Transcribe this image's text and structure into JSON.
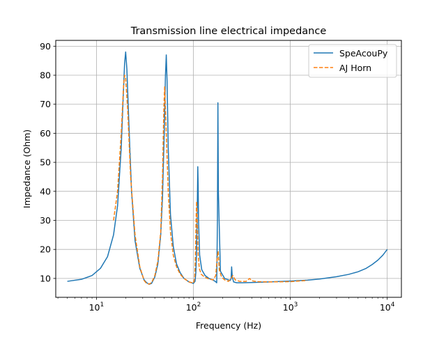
{
  "chart_data": {
    "type": "line",
    "title": "Transmission line electrical impedance",
    "xlabel": "Frequency (Hz)",
    "ylabel": "Impedance (Ohm)",
    "xscale": "log",
    "xlim": [
      3.8,
      14000
    ],
    "ylim": [
      3.5,
      92
    ],
    "x_ticks": [
      {
        "value": 10,
        "base": "10",
        "exp": "1"
      },
      {
        "value": 100,
        "base": "10",
        "exp": "2"
      },
      {
        "value": 1000,
        "base": "10",
        "exp": "3"
      },
      {
        "value": 10000,
        "base": "10",
        "exp": "4"
      }
    ],
    "y_ticks": [
      10,
      20,
      30,
      40,
      50,
      60,
      70,
      80,
      90
    ],
    "grid": true,
    "legend_position": "top-right",
    "series": [
      {
        "name": "SpeAcouPy",
        "color": "#1f77b4",
        "style": "solid",
        "x": [
          5,
          7,
          9,
          11,
          13,
          15,
          16.5,
          18,
          19,
          19.5,
          20,
          20.6,
          21.5,
          23,
          25,
          28,
          31,
          33,
          35,
          37,
          40,
          43,
          46,
          48,
          50,
          51.5,
          52.5,
          53.5,
          55,
          58,
          62,
          67,
          73,
          80,
          90,
          100,
          104,
          106,
          108,
          110,
          111,
          112,
          113,
          116,
          122,
          132,
          145,
          158,
          168,
          174,
          177,
          179,
          181,
          190,
          210,
          230,
          240,
          245,
          248,
          252,
          260,
          280,
          320,
          400,
          600,
          1000,
          1500,
          2000,
          3000,
          4000,
          5000,
          6000,
          7000,
          8000,
          9000,
          10000
        ],
        "y": [
          9.0,
          9.7,
          11.0,
          13.5,
          17.5,
          25.0,
          35.0,
          55.0,
          75.0,
          84.0,
          88.0,
          82.0,
          65.0,
          40.0,
          23.0,
          13.5,
          9.5,
          8.5,
          8.0,
          8.3,
          10.5,
          15.0,
          25.0,
          38.0,
          60.0,
          80.0,
          87.0,
          78.0,
          55.0,
          32.0,
          21.0,
          15.0,
          12.0,
          10.0,
          8.8,
          8.3,
          9.0,
          12.0,
          20.0,
          38.0,
          48.5,
          42.0,
          30.0,
          18.0,
          13.0,
          11.0,
          10.0,
          9.5,
          9.0,
          8.5,
          30.0,
          70.5,
          40.0,
          12.5,
          10.0,
          9.5,
          9.3,
          10.0,
          14.0,
          10.5,
          8.8,
          8.5,
          8.5,
          8.6,
          8.8,
          9.1,
          9.4,
          9.8,
          10.6,
          11.4,
          12.3,
          13.4,
          14.8,
          16.3,
          18.0,
          20.0
        ]
      },
      {
        "name": "AJ Horn",
        "color": "#ff7f0e",
        "style": "dashed",
        "x": [
          15,
          16.5,
          18,
          19,
          19.5,
          20,
          21,
          22.5,
          25,
          28,
          31,
          33,
          35,
          37,
          40,
          43,
          46,
          48,
          49.5,
          50.5,
          52,
          55,
          58,
          62,
          67,
          73,
          80,
          90,
          100,
          103,
          105,
          106.5,
          108,
          110,
          112,
          115,
          120,
          130,
          145,
          160,
          170,
          175,
          180,
          185,
          195,
          210,
          230,
          245,
          255,
          270,
          300,
          350,
          380,
          400,
          450,
          600,
          1000,
          1500
        ],
        "y": [
          30.0,
          40.0,
          60.0,
          76.0,
          80.0,
          79.0,
          68.0,
          45.0,
          25.0,
          14.0,
          9.3,
          8.2,
          8.1,
          8.5,
          11.0,
          16.0,
          26.0,
          45.0,
          68.0,
          76.0,
          64.0,
          40.0,
          26.0,
          18.0,
          14.0,
          11.5,
          10.0,
          8.8,
          8.4,
          10.0,
          18.0,
          30.0,
          36.5,
          28.0,
          18.0,
          13.5,
          11.5,
          10.5,
          9.8,
          9.5,
          11.0,
          16.0,
          19.5,
          13.0,
          10.5,
          9.5,
          9.0,
          10.0,
          11.0,
          9.5,
          9.0,
          9.0,
          10.0,
          9.2,
          8.9,
          8.8,
          8.9,
          9.3
        ]
      }
    ]
  }
}
